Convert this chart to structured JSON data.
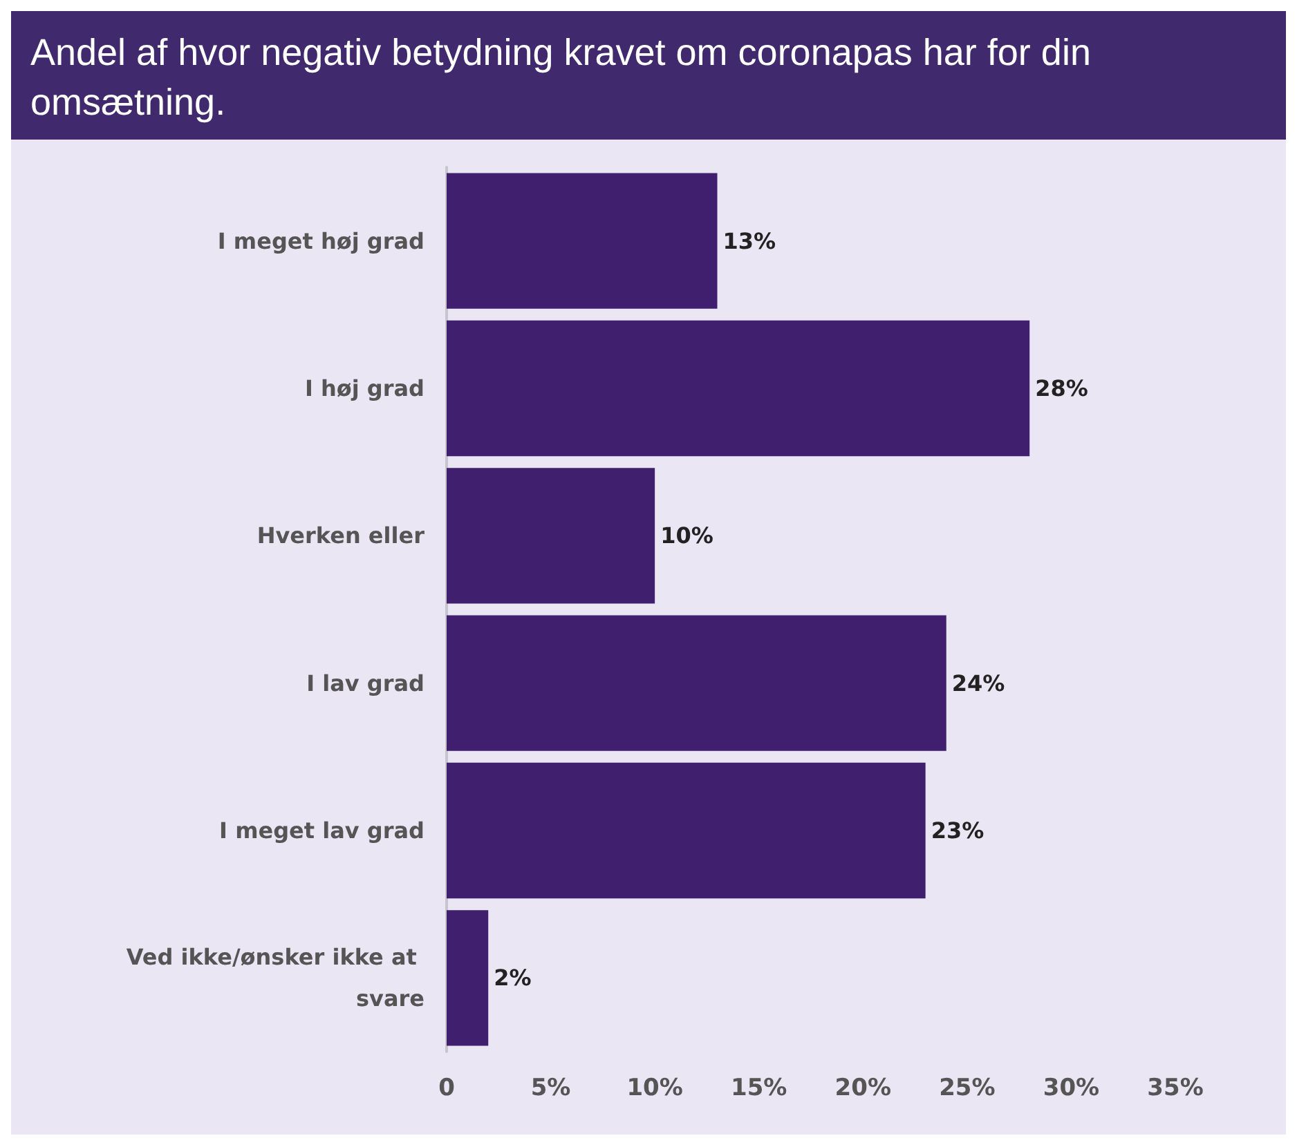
{
  "chart_data": {
    "type": "bar",
    "orientation": "horizontal",
    "title": "Andel af hvor negativ betydning kravet om coronapas har for din omsætning.",
    "categories": [
      "I meget høj grad",
      "I høj grad",
      "Hverken eller",
      "I lav grad",
      "I meget lav grad",
      "Ved ikke/ønsker ikke at svare"
    ],
    "values": [
      13,
      28,
      10,
      24,
      23,
      2
    ],
    "value_labels": [
      "13%",
      "28%",
      "10%",
      "24%",
      "23%",
      "2%"
    ],
    "color": "#3f1f6e",
    "xlim": [
      0,
      35
    ],
    "xticks": [
      {
        "value": 0,
        "label": "0"
      },
      {
        "value": 5,
        "label": "5%"
      },
      {
        "value": 10,
        "label": "10%"
      },
      {
        "value": 15,
        "label": "15%"
      },
      {
        "value": 20,
        "label": "20%"
      },
      {
        "value": 25,
        "label": "25%"
      },
      {
        "value": 30,
        "label": "30%"
      },
      {
        "value": 35,
        "label": "35%"
      }
    ],
    "grid": false
  }
}
